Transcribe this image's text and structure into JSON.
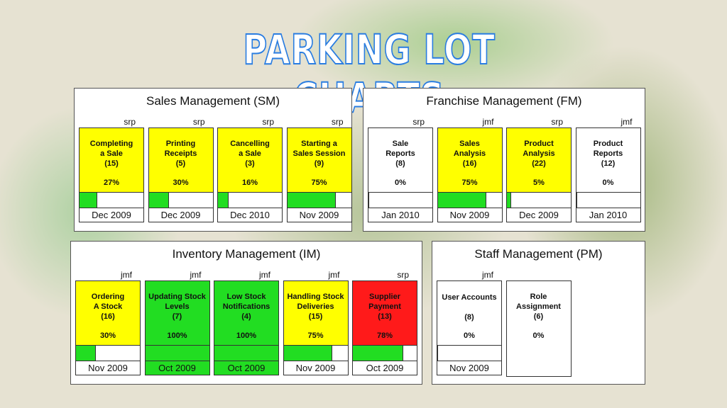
{
  "title": "PARKING LOT CHARTS",
  "panels": [
    {
      "name": "Sales Management (SM)",
      "cards": [
        {
          "owner": "srp",
          "lines": [
            "Completing",
            "a Sale"
          ],
          "count": "(15)",
          "percent": "27%",
          "progress": 27,
          "date": "Dec 2009",
          "color": "yellow"
        },
        {
          "owner": "srp",
          "lines": [
            "Printing",
            "Receipts"
          ],
          "count": "(5)",
          "percent": "30%",
          "progress": 30,
          "date": "Dec 2009",
          "color": "yellow"
        },
        {
          "owner": "srp",
          "lines": [
            "Cancelling",
            "a Sale"
          ],
          "count": "(3)",
          "percent": "16%",
          "progress": 16,
          "date": "Dec 2010",
          "color": "yellow"
        },
        {
          "owner": "srp",
          "lines": [
            "Starting a",
            "Sales Session"
          ],
          "count": "(9)",
          "percent": "75%",
          "progress": 75,
          "date": "Nov 2009",
          "color": "yellow"
        }
      ]
    },
    {
      "name": "Franchise Management (FM)",
      "cards": [
        {
          "owner": "srp",
          "lines": [
            "Sale",
            "Reports"
          ],
          "count": "(8)",
          "percent": "0%",
          "progress": 0,
          "date": "Jan 2010",
          "color": "white"
        },
        {
          "owner": "jmf",
          "lines": [
            "Sales",
            "Analysis"
          ],
          "count": "(16)",
          "percent": "75%",
          "progress": 75,
          "date": "Nov 2009",
          "color": "yellow"
        },
        {
          "owner": "srp",
          "lines": [
            "Product",
            "Analysis"
          ],
          "count": "(22)",
          "percent": "5%",
          "progress": 5,
          "date": "Dec 2009",
          "color": "yellow"
        },
        {
          "owner": "jmf",
          "lines": [
            "Product",
            "Reports"
          ],
          "count": "(12)",
          "percent": "0%",
          "progress": 0,
          "date": "Jan 2010",
          "color": "white"
        }
      ]
    },
    {
      "name": "Inventory Management (IM)",
      "cards": [
        {
          "owner": "jmf",
          "lines": [
            "Ordering",
            "A Stock"
          ],
          "count": "(16)",
          "percent": "30%",
          "progress": 30,
          "date": "Nov 2009",
          "color": "yellow"
        },
        {
          "owner": "jmf",
          "lines": [
            "Updating Stock",
            "Levels"
          ],
          "count": "(7)",
          "percent": "100%",
          "progress": 100,
          "date": "Oct 2009",
          "color": "green"
        },
        {
          "owner": "jmf",
          "lines": [
            "Low Stock",
            "Notifications"
          ],
          "count": "(4)",
          "percent": "100%",
          "progress": 100,
          "date": "Oct 2009",
          "color": "green"
        },
        {
          "owner": "jmf",
          "lines": [
            "Handling Stock",
            "Deliveries"
          ],
          "count": "(15)",
          "percent": "75%",
          "progress": 75,
          "date": "Nov 2009",
          "color": "yellow"
        },
        {
          "owner": "srp",
          "lines": [
            "Supplier",
            "Payment"
          ],
          "count": "(13)",
          "percent": "78%",
          "progress": 78,
          "date": "Oct 2009",
          "color": "red"
        }
      ]
    },
    {
      "name": "Staff Management (PM)",
      "cards": [
        {
          "owner": "jmf",
          "lines": [
            "User Accounts"
          ],
          "count": "(8)",
          "percent": "0%",
          "progress": 0,
          "date": "Nov 2009",
          "color": "white"
        },
        {
          "lines": [
            "Role",
            "Assignment"
          ],
          "count": "(6)",
          "percent": "0%",
          "color": "white"
        }
      ]
    }
  ]
}
